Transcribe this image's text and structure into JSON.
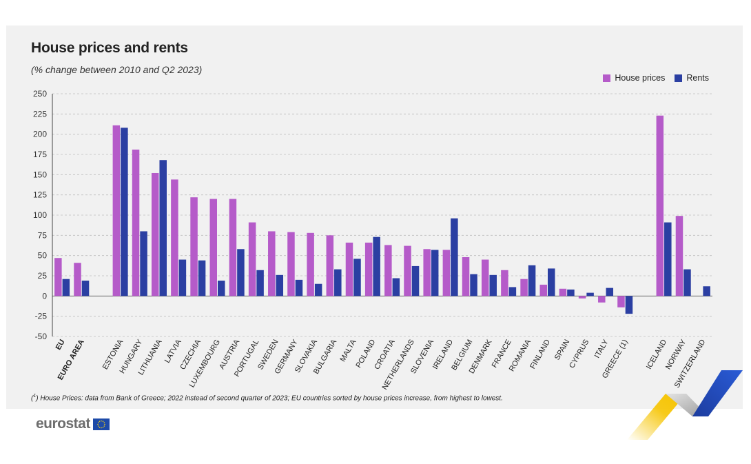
{
  "title": "House prices and rents",
  "subtitle": "(% change between 2010 and Q2 2023)",
  "footnote": {
    "marker": "1",
    "text": " House Prices: data from Bank of Greece; 2022 instead of second quarter of 2023; EU countries sorted by house prices increase, from highest to lowest."
  },
  "logo": {
    "text": "eurostat",
    "flag_color": "#1d4aa8",
    "star_color": "#f4cf15"
  },
  "colors": {
    "house_prices": "#b55bc9",
    "rents": "#2b3fa2",
    "panel": "#f1f1f1"
  },
  "chart_data": {
    "type": "bar",
    "ylim": [
      -50,
      250
    ],
    "yticks": [
      -50,
      -25,
      0,
      25,
      50,
      75,
      100,
      125,
      150,
      175,
      200,
      225,
      250
    ],
    "legend_position": "top-right",
    "grid": true,
    "categories": [
      "EU",
      "EURO AREA",
      "",
      "ESTONIA",
      "HUNGARY",
      "LITHUANIA",
      "LATVIA",
      "CZECHIA",
      "LUXEMBOURG",
      "AUSTRIA",
      "PORTUGAL",
      "SWEDEN",
      "GERMANY",
      "SLOVAKIA",
      "BULGARIA",
      "MALTA",
      "POLAND",
      "CROATIA",
      "NETHERLANDS",
      "SLOVENIA",
      "IRELAND",
      "BELGIUM",
      "DENMARK",
      "FRANCE",
      "ROMANIA",
      "FINLAND",
      "SPAIN",
      "CYPRUS",
      "ITALY",
      "GREECE (1)",
      "",
      "ICELAND",
      "NORWAY",
      "SWITZERLAND"
    ],
    "bold_categories": [
      "EU",
      "EURO AREA"
    ],
    "series": [
      {
        "name": "House prices",
        "color": "#b55bc9",
        "values": [
          47,
          41,
          null,
          211,
          181,
          152,
          144,
          122,
          120,
          120,
          91,
          80,
          79,
          78,
          75,
          66,
          66,
          63,
          62,
          58,
          57,
          48,
          45,
          32,
          21,
          14,
          9,
          -3,
          -8,
          -14,
          null,
          223,
          99,
          null
        ]
      },
      {
        "name": "Rents",
        "color": "#2b3fa2",
        "values": [
          21,
          19,
          null,
          208,
          80,
          168,
          45,
          44,
          19,
          58,
          32,
          26,
          20,
          15,
          33,
          46,
          73,
          22,
          37,
          57,
          96,
          27,
          26,
          11,
          38,
          34,
          8,
          4,
          10,
          -22,
          null,
          91,
          33,
          12
        ]
      }
    ]
  }
}
